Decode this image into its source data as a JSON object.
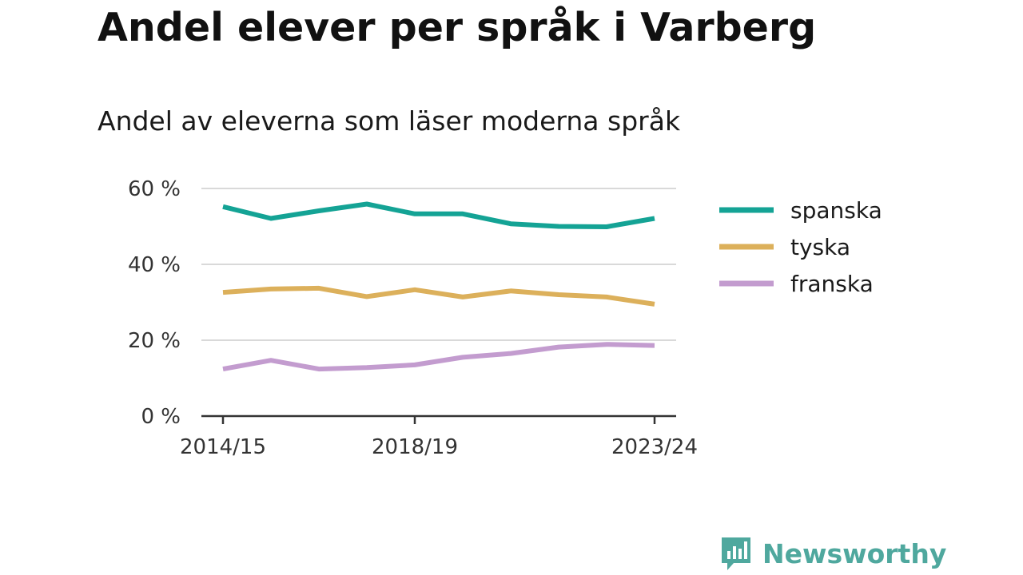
{
  "title": "Andel elever per språk i Varberg",
  "subtitle": "Andel av eleverna som läser moderna språk",
  "brand": {
    "name": "Newsworthy",
    "icon": "bar-chart-speech-bubble-icon",
    "color": "#4fa89e"
  },
  "chart_data": {
    "type": "line",
    "title": "Andel elever per språk i Varberg",
    "subtitle": "Andel av eleverna som läser moderna språk",
    "x": [
      "2014/15",
      "2015/16",
      "2016/17",
      "2017/18",
      "2018/19",
      "2019/20",
      "2020/21",
      "2021/22",
      "2022/23",
      "2023/24"
    ],
    "x_tick_labels": [
      "2014/15",
      "2018/19",
      "2023/24"
    ],
    "ylim": [
      0,
      60
    ],
    "y_ticks": [
      0,
      20,
      40,
      60
    ],
    "y_tick_labels": [
      "0 %",
      "20 %",
      "40 %",
      "60 %"
    ],
    "grid": true,
    "legend_position": "right",
    "series": [
      {
        "name": "spanska",
        "color": "#14a395",
        "values": [
          55.2,
          52.1,
          54.1,
          55.9,
          53.3,
          53.3,
          50.7,
          50.0,
          49.9,
          52.1
        ]
      },
      {
        "name": "tyska",
        "color": "#dcb05b",
        "values": [
          32.6,
          33.5,
          33.7,
          31.5,
          33.3,
          31.4,
          33.0,
          32.0,
          31.4,
          29.5
        ]
      },
      {
        "name": "franska",
        "color": "#c39ccf",
        "values": [
          12.4,
          14.7,
          12.4,
          12.8,
          13.5,
          15.5,
          16.5,
          18.2,
          18.9,
          18.6
        ]
      }
    ]
  }
}
